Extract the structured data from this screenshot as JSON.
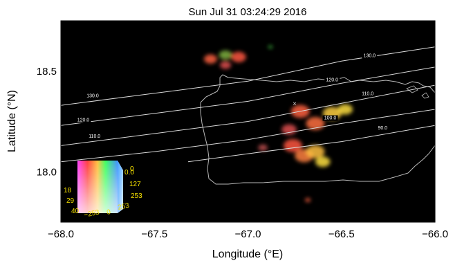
{
  "chart_data": {
    "type": "heatmap",
    "title": "Sun Jul 31 03:24:29 2016",
    "xlabel": "Longitude (°E)",
    "ylabel": "Latitude (°N)",
    "xlim": [
      -68.0,
      -66.0
    ],
    "ylim": [
      17.75,
      18.75
    ],
    "xticks": [
      -68.0,
      -67.5,
      -67.0,
      -66.5,
      -66.0
    ],
    "xtick_labels": [
      "−68.0",
      "−67.5",
      "−67.0",
      "−66.5",
      "−66.0"
    ],
    "yticks": [
      18.0,
      18.5
    ],
    "ytick_labels": [
      "18.0",
      "18.5"
    ],
    "background_color": "#000000",
    "contour_color": "#d8d8d8",
    "contours": [
      {
        "label": "130.0",
        "points": [
          [
            -68.0,
            18.33
          ],
          [
            -67.5,
            18.39
          ],
          [
            -67.0,
            18.45
          ],
          [
            -66.5,
            18.55
          ],
          [
            -66.0,
            18.62
          ]
        ]
      },
      {
        "label": "120.0",
        "points": [
          [
            -68.0,
            18.23
          ],
          [
            -67.5,
            18.29
          ],
          [
            -67.0,
            18.35
          ],
          [
            -66.5,
            18.44
          ],
          [
            -66.0,
            18.52
          ]
        ]
      },
      {
        "label": "110.0",
        "points": [
          [
            -68.0,
            18.13
          ],
          [
            -67.5,
            18.19
          ],
          [
            -67.0,
            18.25
          ],
          [
            -66.5,
            18.34
          ],
          [
            -66.0,
            18.43
          ]
        ]
      },
      {
        "label": "100.0",
        "points": [
          [
            -68.0,
            18.05
          ],
          [
            -67.5,
            18.1
          ],
          [
            -67.0,
            18.16
          ],
          [
            -66.5,
            18.24
          ],
          [
            -66.0,
            18.31
          ]
        ]
      },
      {
        "label": "90.0",
        "points": [
          [
            -67.32,
            18.05
          ],
          [
            -67.0,
            18.09
          ],
          [
            -66.5,
            18.15
          ],
          [
            -66.0,
            18.23
          ]
        ]
      }
    ],
    "contour_labels": [
      {
        "text": "130.0",
        "lon": -67.83,
        "lat": 18.37
      },
      {
        "text": "130.0",
        "lon": -66.35,
        "lat": 18.57
      },
      {
        "text": "120.0",
        "lon": -67.88,
        "lat": 18.25
      },
      {
        "text": "120.0",
        "lon": -66.55,
        "lat": 18.45
      },
      {
        "text": "110.0",
        "lon": -67.82,
        "lat": 18.17
      },
      {
        "text": "110.0",
        "lon": -66.36,
        "lat": 18.38
      },
      {
        "text": "100.0",
        "lon": -66.56,
        "lat": 18.26
      },
      {
        "text": "90.0",
        "lon": -66.28,
        "lat": 18.21
      }
    ],
    "blobs": [
      {
        "lon": -67.2,
        "lat": 18.56,
        "r": 0.035,
        "color": "#ff6040"
      },
      {
        "lon": -67.12,
        "lat": 18.58,
        "r": 0.035,
        "color": "#7fb040"
      },
      {
        "lon": -67.05,
        "lat": 18.57,
        "r": 0.04,
        "color": "#ff5540"
      },
      {
        "lon": -67.12,
        "lat": 18.53,
        "r": 0.03,
        "color": "#e05050"
      },
      {
        "lon": -66.88,
        "lat": 18.62,
        "r": 0.012,
        "color": "#40c040"
      },
      {
        "lon": -66.72,
        "lat": 18.3,
        "r": 0.05,
        "color": "#ff6040"
      },
      {
        "lon": -66.64,
        "lat": 18.24,
        "r": 0.05,
        "color": "#ff7040"
      },
      {
        "lon": -66.55,
        "lat": 18.29,
        "r": 0.05,
        "color": "#ffd040"
      },
      {
        "lon": -66.48,
        "lat": 18.31,
        "r": 0.04,
        "color": "#ffe040"
      },
      {
        "lon": -66.78,
        "lat": 18.21,
        "r": 0.04,
        "color": "#e05050"
      },
      {
        "lon": -66.76,
        "lat": 18.13,
        "r": 0.05,
        "color": "#ff5540"
      },
      {
        "lon": -66.7,
        "lat": 18.08,
        "r": 0.05,
        "color": "#ff8040"
      },
      {
        "lon": -66.64,
        "lat": 18.1,
        "r": 0.05,
        "color": "#ffc040"
      },
      {
        "lon": -66.6,
        "lat": 18.05,
        "r": 0.04,
        "color": "#ffe040"
      },
      {
        "lon": -66.92,
        "lat": 18.12,
        "r": 0.025,
        "color": "#c05050"
      },
      {
        "lon": -66.68,
        "lat": 17.86,
        "r": 0.015,
        "color": "#ff6040"
      }
    ],
    "color_cube": {
      "labels_yellow": [
        "0.0",
        "0",
        "127",
        "253",
        "18",
        "29",
        "40",
        "−253",
        "0",
        "253"
      ]
    }
  }
}
